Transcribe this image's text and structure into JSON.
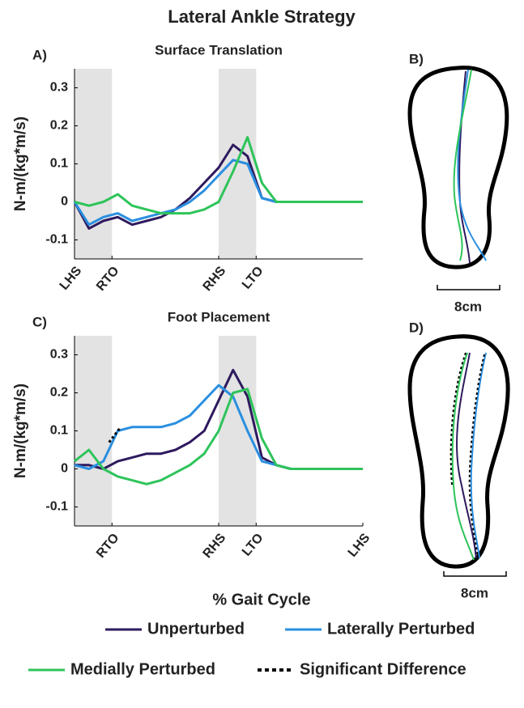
{
  "title": "Lateral Ankle Strategy",
  "xlabel": "% Gait Cycle",
  "chart_data": [
    {
      "type": "line",
      "panel": "A)",
      "title": "Surface Translation",
      "ylabel": "N-m/(kg*m/s)",
      "x": [
        0,
        5,
        10,
        15,
        20,
        25,
        30,
        35,
        40,
        45,
        50,
        55,
        60,
        65,
        70,
        75,
        80,
        85,
        90,
        95,
        100
      ],
      "xlim": [
        0,
        100
      ],
      "ylim": [
        -0.15,
        0.35
      ],
      "yticks": [
        -0.1,
        0,
        0.1,
        0.2,
        0.3
      ],
      "xticks": [
        {
          "value": 0,
          "label": "LHS"
        },
        {
          "value": 13,
          "label": "RTO"
        },
        {
          "value": 50,
          "label": "RHS"
        },
        {
          "value": 63,
          "label": "LTO"
        }
      ],
      "shaded": [
        [
          0,
          13
        ],
        [
          50,
          63
        ]
      ],
      "series": [
        {
          "name": "Unperturbed",
          "color": "#2e1a5e",
          "values": [
            0,
            -0.07,
            -0.05,
            -0.04,
            -0.06,
            -0.05,
            -0.04,
            -0.02,
            0.01,
            0.05,
            0.09,
            0.15,
            0.12,
            0.01,
            0,
            0,
            0,
            0,
            0,
            0,
            0
          ]
        },
        {
          "name": "Laterally Perturbed",
          "color": "#2a8fe0",
          "values": [
            0,
            -0.06,
            -0.04,
            -0.03,
            -0.05,
            -0.04,
            -0.03,
            -0.02,
            0,
            0.03,
            0.07,
            0.11,
            0.1,
            0.01,
            0,
            0,
            0,
            0,
            0,
            0,
            0
          ]
        },
        {
          "name": "Medially Perturbed",
          "color": "#2ec45a",
          "values": [
            0,
            -0.01,
            0,
            0.02,
            -0.01,
            -0.02,
            -0.03,
            -0.03,
            -0.03,
            -0.02,
            0,
            0.08,
            0.17,
            0.05,
            0,
            0,
            0,
            0,
            0,
            0,
            0
          ]
        }
      ]
    },
    {
      "type": "line",
      "panel": "C)",
      "title": "Foot Placement",
      "ylabel": "N-m/(kg*m/s)",
      "x": [
        0,
        5,
        10,
        15,
        20,
        25,
        30,
        35,
        40,
        45,
        50,
        55,
        60,
        65,
        70,
        75,
        80,
        85,
        90,
        95,
        100
      ],
      "xlim": [
        0,
        100
      ],
      "ylim": [
        -0.15,
        0.35
      ],
      "yticks": [
        -0.1,
        0,
        0.1,
        0.2,
        0.3
      ],
      "xticks": [
        {
          "value": 13,
          "label": "RTO"
        },
        {
          "value": 50,
          "label": "RHS"
        },
        {
          "value": 63,
          "label": "LTO"
        },
        {
          "value": 100,
          "label": "LHS"
        }
      ],
      "shaded": [
        [
          0,
          13
        ],
        [
          50,
          63
        ]
      ],
      "series": [
        {
          "name": "Unperturbed",
          "color": "#2e1a5e",
          "values": [
            0.01,
            0.01,
            0,
            0.02,
            0.03,
            0.04,
            0.04,
            0.05,
            0.07,
            0.1,
            0.18,
            0.26,
            0.19,
            0.03,
            0.01,
            0,
            0,
            0,
            0,
            0,
            0
          ]
        },
        {
          "name": "Laterally Perturbed",
          "color": "#2a8fe0",
          "values": [
            0.01,
            0,
            0.02,
            0.1,
            0.11,
            0.11,
            0.11,
            0.12,
            0.14,
            0.18,
            0.22,
            0.19,
            0.1,
            0.02,
            0.01,
            0,
            0,
            0,
            0,
            0,
            0
          ]
        },
        {
          "name": "Medially Perturbed",
          "color": "#2ec45a",
          "values": [
            0.02,
            0.05,
            0,
            -0.02,
            -0.03,
            -0.04,
            -0.03,
            -0.01,
            0.01,
            0.04,
            0.1,
            0.2,
            0.21,
            0.08,
            0.01,
            0,
            0,
            0,
            0,
            0,
            0
          ]
        },
        {
          "name": "Significant Difference",
          "color": "#000000",
          "style": "dotted",
          "x": [
            12,
            14,
            16
          ],
          "values": [
            0.07,
            0.09,
            0.11
          ]
        }
      ]
    }
  ],
  "diagrams": [
    {
      "panel": "B)",
      "scale": "8cm"
    },
    {
      "panel": "D)",
      "scale": "8cm"
    }
  ]
}
